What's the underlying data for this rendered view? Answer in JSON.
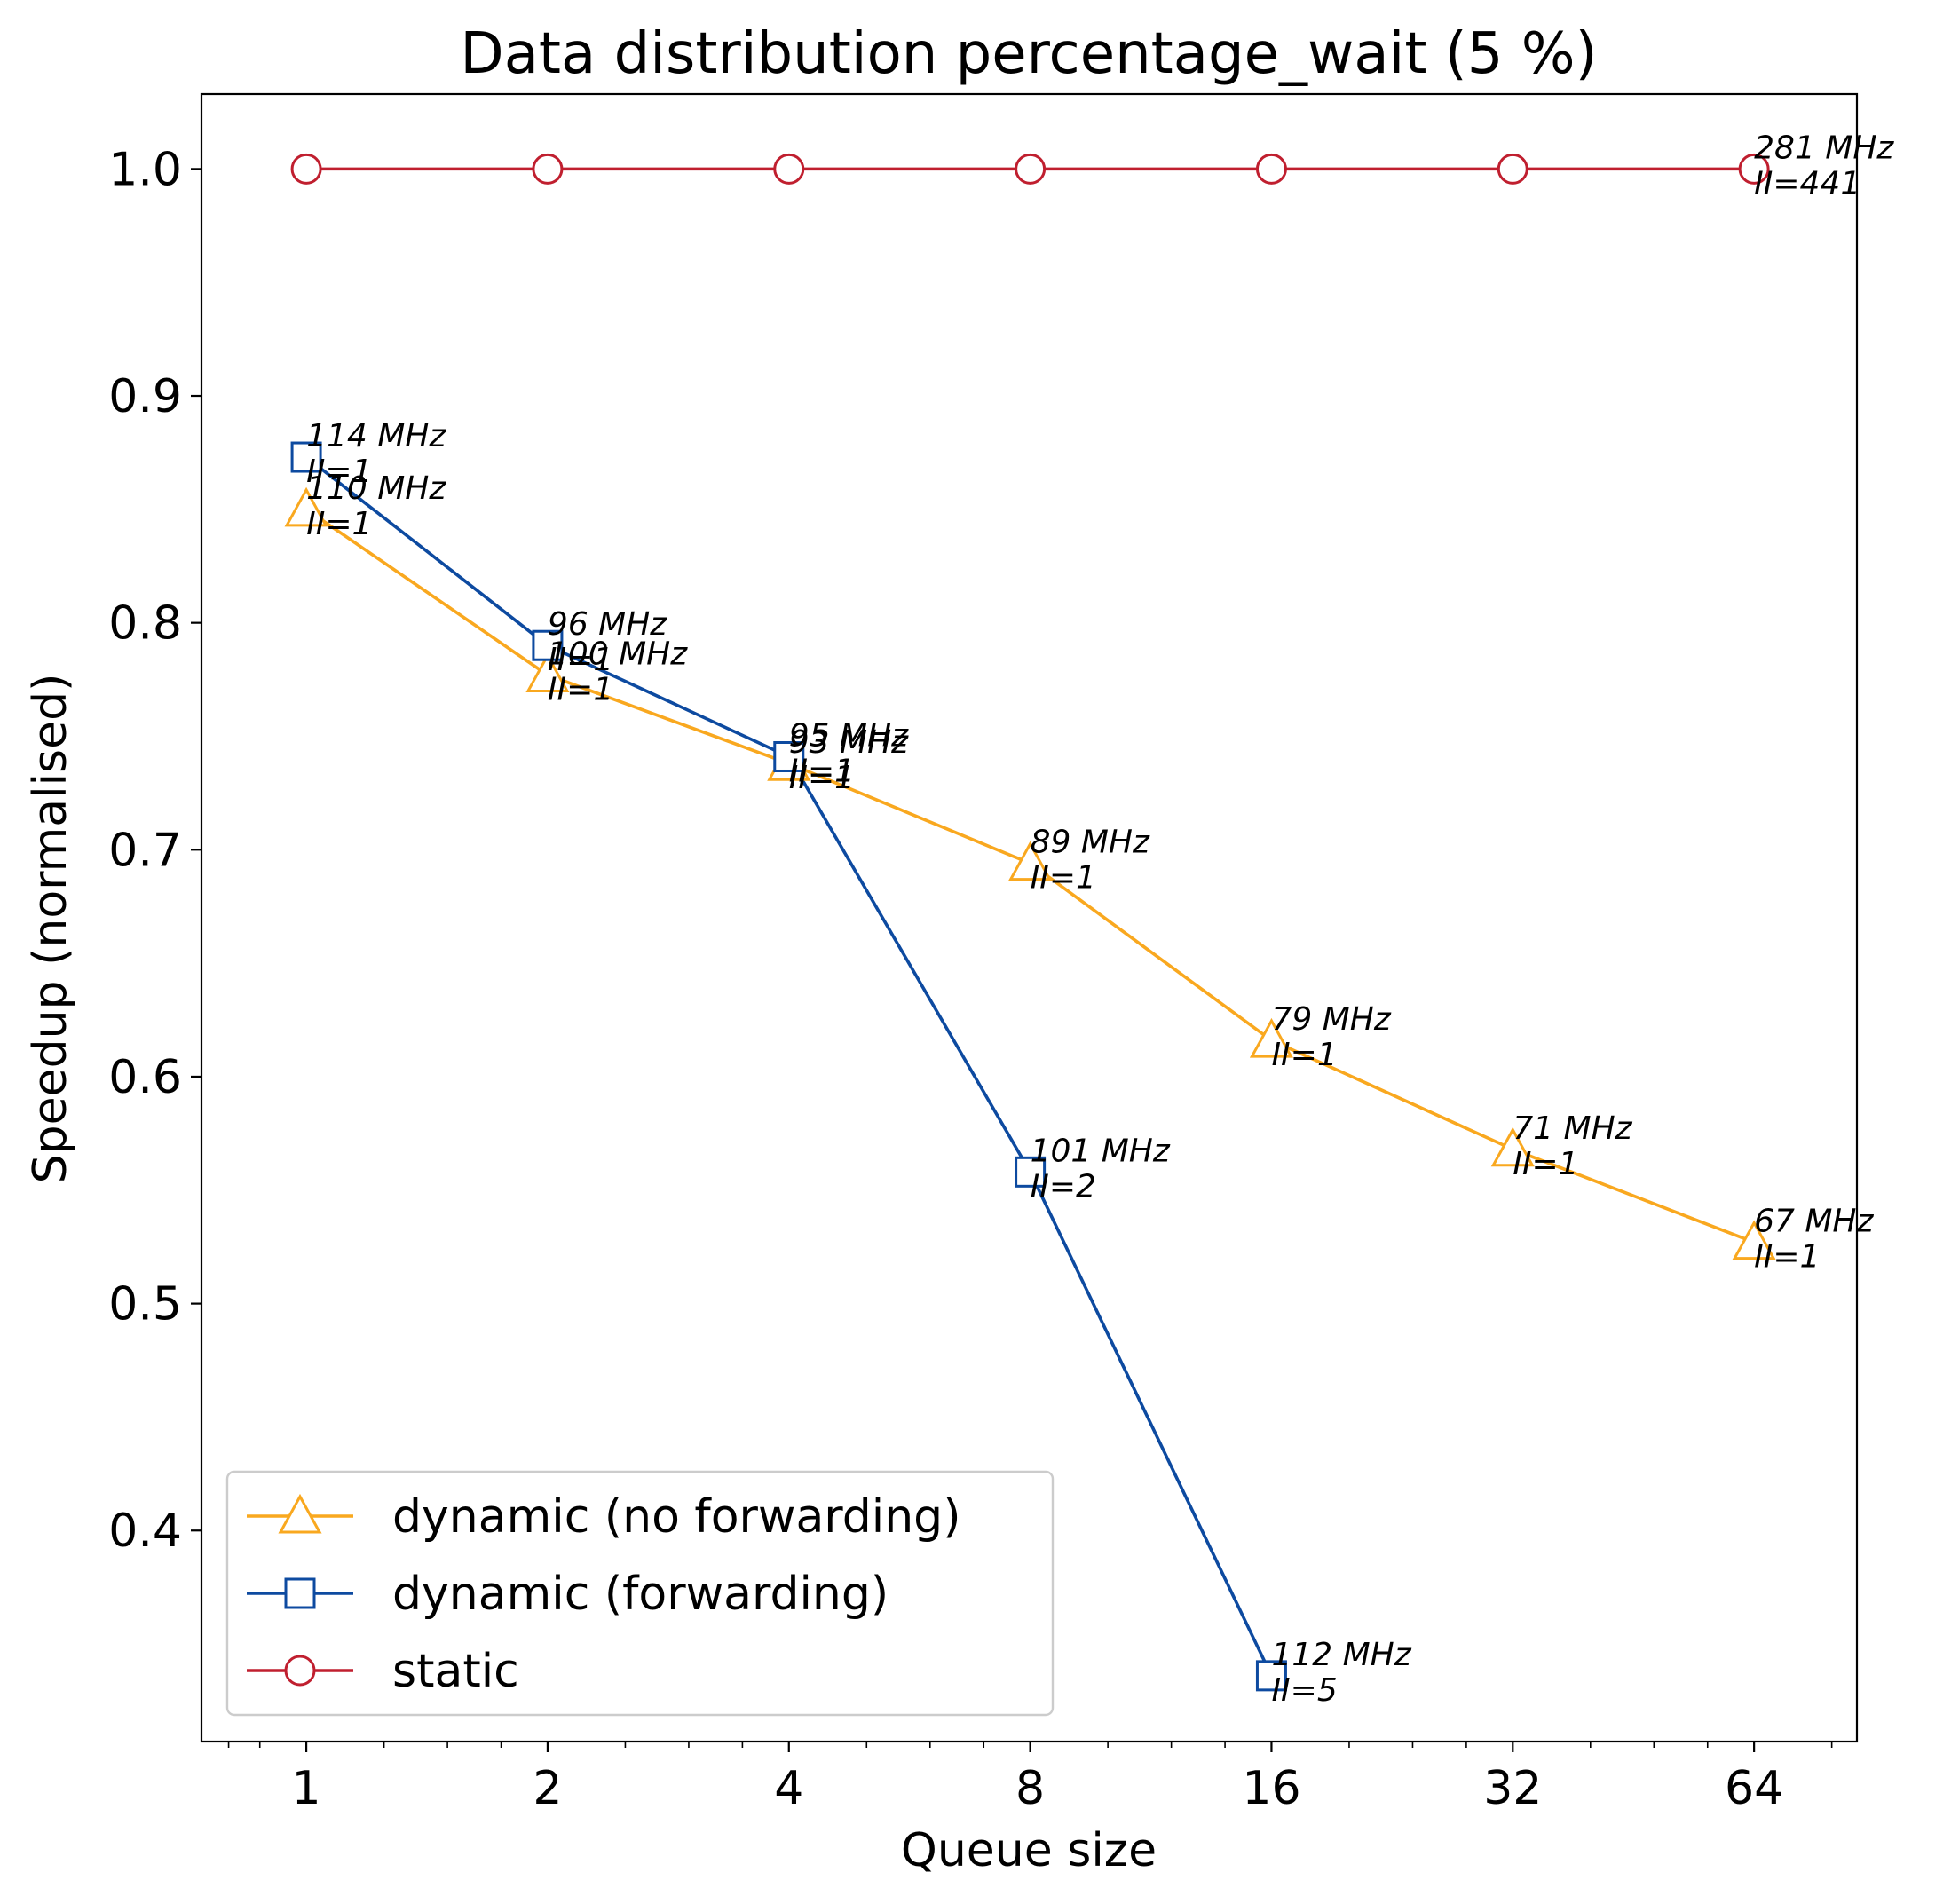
{
  "chart_data": {
    "type": "line",
    "title": "Data distribution percentage_wait (5 %)",
    "xlabel": "Queue size",
    "ylabel": "Speedup (normalised)",
    "x_scale": "log2",
    "x": [
      1,
      2,
      4,
      8,
      16,
      32,
      64
    ],
    "x_tick_labels": [
      "1",
      "2",
      "4",
      "8",
      "16",
      "32",
      "64"
    ],
    "xlim": [
      0.74,
      86
    ],
    "ylim": [
      0.307,
      1.033
    ],
    "y_ticks": [
      0.4,
      0.5,
      0.6,
      0.7,
      0.8,
      0.9,
      1.0
    ],
    "y_tick_labels": [
      "0.4",
      "0.5",
      "0.6",
      "0.7",
      "0.8",
      "0.9",
      "1.0"
    ],
    "grid": false,
    "legend_position": "lower-left",
    "series": [
      {
        "name": "dynamic (no forwarding)",
        "color": "#f9a81f",
        "marker": "triangle-open",
        "x": [
          1,
          2,
          4,
          8,
          16,
          32,
          64
        ],
        "values": [
          0.85,
          0.777,
          0.738,
          0.694,
          0.616,
          0.568,
          0.527
        ],
        "annotations": [
          [
            "110 MHz",
            "II=1"
          ],
          [
            "100 MHz",
            "II=1"
          ],
          [
            "93 MHz",
            "II=1"
          ],
          [
            "89 MHz",
            "II=1"
          ],
          [
            "79 MHz",
            "II=1"
          ],
          [
            "71 MHz",
            "II=1"
          ],
          [
            "67 MHz",
            "II=1"
          ]
        ]
      },
      {
        "name": "dynamic (forwarding)",
        "color": "#0d4aa0",
        "marker": "square-open",
        "x": [
          1,
          2,
          4,
          8,
          16
        ],
        "values": [
          0.873,
          0.79,
          0.741,
          0.558,
          0.336
        ],
        "annotations": [
          [
            "114 MHz",
            "II=1"
          ],
          [
            "96 MHz",
            "II=1"
          ],
          [
            "95 MHz",
            "II=1"
          ],
          [
            "101 MHz",
            "II=2"
          ],
          [
            "112 MHz",
            "II=5"
          ]
        ]
      },
      {
        "name": "static",
        "color": "#c01f2f",
        "marker": "circle-open",
        "x": [
          1,
          2,
          4,
          8,
          16,
          32,
          64
        ],
        "values": [
          1.0,
          1.0,
          1.0,
          1.0,
          1.0,
          1.0,
          1.0
        ],
        "annotations": [
          null,
          null,
          null,
          null,
          null,
          null,
          [
            "281 MHz",
            "II=441"
          ]
        ]
      }
    ]
  }
}
